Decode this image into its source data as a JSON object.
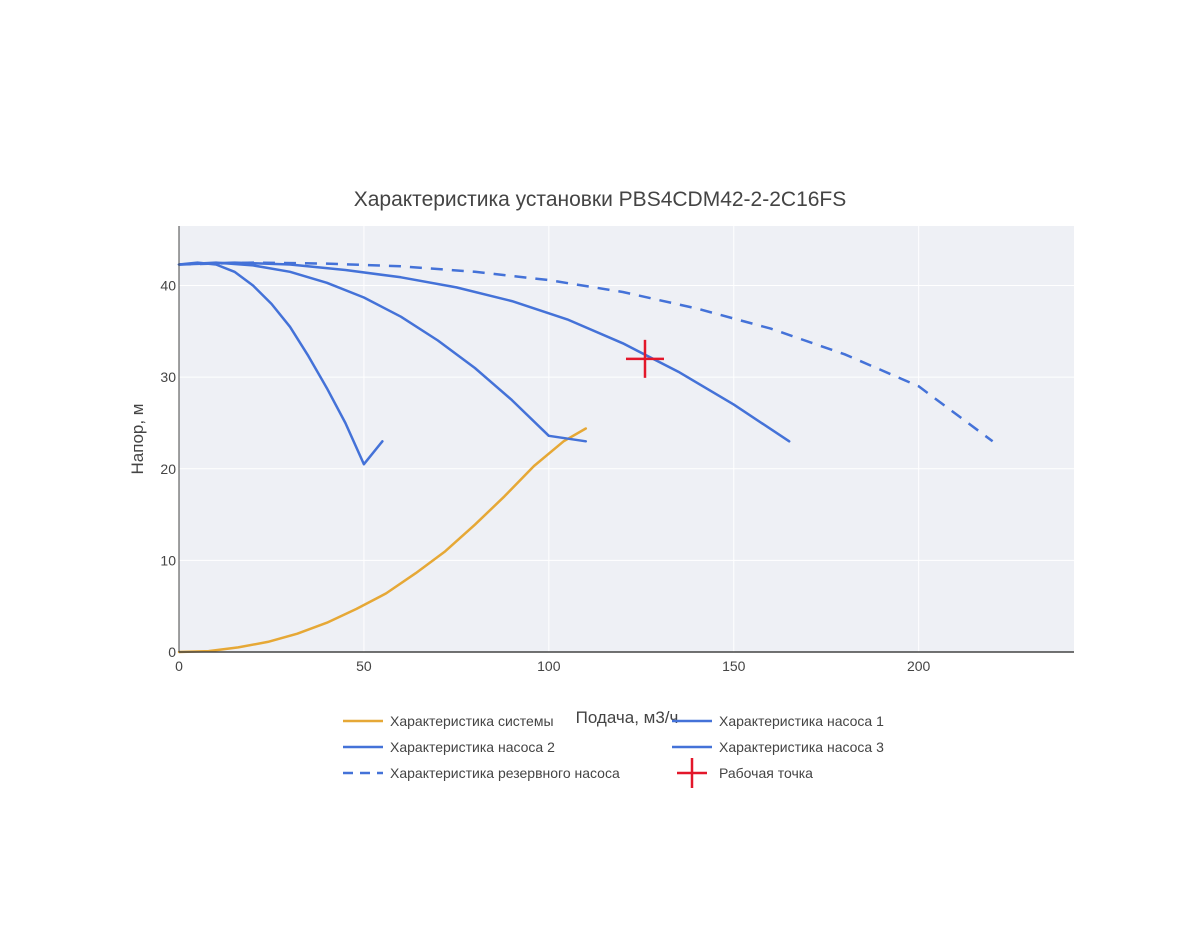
{
  "chart_data": {
    "type": "line",
    "title": "Характеристика установки PBS4CDM42-2-2C16FS",
    "xlabel": "Подача, м3/ч",
    "ylabel": "Напор, м",
    "xlim": [
      0,
      242
    ],
    "ylim": [
      0,
      46.5
    ],
    "xticks": [
      0,
      50,
      100,
      150,
      200
    ],
    "yticks": [
      0,
      10,
      20,
      30,
      40
    ],
    "grid": true,
    "legend_position": "bottom-center",
    "colors": {
      "plot_bg": "#eef0f5",
      "grid": "#ffffff",
      "axis": "#444444",
      "system": "#e6a836",
      "pump": "#4472d8",
      "operating_point": "#e3172a"
    },
    "series": [
      {
        "name": "Характеристика системы",
        "color": "#e6a836",
        "dash": "solid",
        "x": [
          0,
          8,
          16,
          24,
          32,
          40,
          48,
          56,
          64,
          72,
          80,
          88,
          96,
          104,
          110
        ],
        "y": [
          0,
          0.1,
          0.5,
          1.1,
          2.0,
          3.2,
          4.7,
          6.4,
          8.6,
          11.0,
          13.9,
          17.0,
          20.3,
          23.0,
          24.4
        ]
      },
      {
        "name": "Характеристика насоса 1",
        "color": "#4472d8",
        "dash": "solid",
        "x": [
          0,
          5,
          10,
          15,
          20,
          25,
          30,
          35,
          40,
          45,
          50,
          55
        ],
        "y": [
          42.3,
          42.5,
          42.3,
          41.5,
          40.0,
          38.0,
          35.5,
          32.3,
          28.8,
          25.0,
          20.5,
          23.0
        ]
      },
      {
        "name": "Характеристика насоса 2",
        "color": "#4472d8",
        "dash": "solid",
        "x": [
          0,
          10,
          20,
          30,
          40,
          50,
          60,
          70,
          80,
          90,
          100,
          110
        ],
        "y": [
          42.3,
          42.5,
          42.2,
          41.5,
          40.3,
          38.7,
          36.6,
          34.0,
          31.0,
          27.5,
          23.6,
          23.0
        ]
      },
      {
        "name": "Характеристика насоса 3",
        "color": "#4472d8",
        "dash": "solid",
        "x": [
          0,
          15,
          30,
          45,
          60,
          75,
          90,
          105,
          120,
          135,
          150,
          165
        ],
        "y": [
          42.3,
          42.5,
          42.3,
          41.7,
          40.9,
          39.8,
          38.3,
          36.3,
          33.7,
          30.6,
          27.0,
          23.0
        ]
      },
      {
        "name": "Характеристика резервного насоса",
        "color": "#4472d8",
        "dash": "dash",
        "x": [
          0,
          20,
          40,
          60,
          80,
          100,
          120,
          140,
          160,
          180,
          200,
          220
        ],
        "y": [
          42.3,
          42.5,
          42.4,
          42.1,
          41.5,
          40.6,
          39.3,
          37.5,
          35.3,
          32.5,
          29.0,
          23.0
        ]
      }
    ],
    "operating_point": {
      "name": "Рабочая точка",
      "x": 126,
      "y": 32,
      "color": "#e3172a",
      "marker": "cross"
    }
  }
}
